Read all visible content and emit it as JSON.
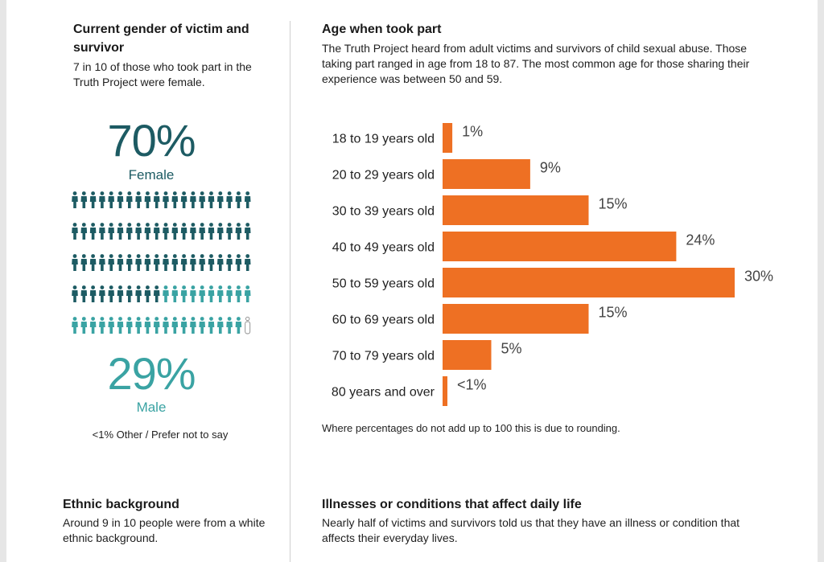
{
  "gender": {
    "heading": "Current gender of victim and survivor",
    "subtext": "7 in 10 of those who took part in the Truth Project were female.",
    "female_pct": "70%",
    "female_label": "Female",
    "male_pct": "29%",
    "male_label": "Male",
    "other_note": "<1% Other / Prefer not to say",
    "pictogram": {
      "female_count": 70,
      "male_count": 29,
      "other_count": 1,
      "total": 100,
      "per_row": 20
    },
    "colors": {
      "female": "#1d5b63",
      "male": "#3aa3a3",
      "other": "#888888"
    }
  },
  "age": {
    "heading": "Age when took part",
    "subtext": "The Truth Project heard from adult victims and survivors of child sexual abuse. Those taking part ranged in age from 18 to 87. The most common age for those sharing their experience was between 50 and 59.",
    "note": "Where percentages do not add up to 100 this is due to rounding."
  },
  "chart_data": {
    "type": "bar",
    "orientation": "horizontal",
    "categories": [
      "18 to 19 years old",
      "20 to 29 years old",
      "30 to 39 years old",
      "40 to 49 years old",
      "50 to 59 years old",
      "60 to 69 years old",
      "70 to 79 years old",
      "80 years and over"
    ],
    "values": [
      1,
      9,
      15,
      24,
      30,
      15,
      5,
      0.5
    ],
    "data_labels": [
      "1%",
      "9%",
      "15%",
      "24%",
      "30%",
      "15%",
      "5%",
      "<1%"
    ],
    "title": "",
    "xlabel": "",
    "ylabel": "",
    "xlim": [
      0,
      30
    ],
    "grid": false,
    "bar_color": "#ee7023"
  },
  "ethnic": {
    "heading": "Ethnic background",
    "subtext": "Around 9 in 10 people were from a white ethnic background."
  },
  "illness": {
    "heading": "Illnesses or conditions that affect daily life",
    "subtext": "Nearly half of victims and survivors told us that they have an illness or condition that affects their everyday lives."
  }
}
